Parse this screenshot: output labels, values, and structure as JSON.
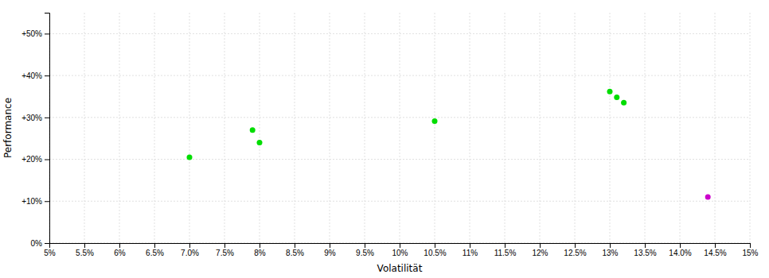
{
  "chart_data": {
    "type": "scatter",
    "xlabel": "Volatilität",
    "ylabel": "Performance",
    "xlim": [
      0.05,
      0.15
    ],
    "ylim": [
      0.0,
      0.55
    ],
    "xticks": [
      {
        "value": 0.05,
        "label": "5%"
      },
      {
        "value": 0.055,
        "label": "5.5%"
      },
      {
        "value": 0.06,
        "label": "6%"
      },
      {
        "value": 0.065,
        "label": "6.5%"
      },
      {
        "value": 0.07,
        "label": "7.0%"
      },
      {
        "value": 0.075,
        "label": "7.5%"
      },
      {
        "value": 0.08,
        "label": "8%"
      },
      {
        "value": 0.085,
        "label": "8.5%"
      },
      {
        "value": 0.09,
        "label": "9%"
      },
      {
        "value": 0.095,
        "label": "9.5%"
      },
      {
        "value": 0.1,
        "label": "10%"
      },
      {
        "value": 0.105,
        "label": "10.5%"
      },
      {
        "value": 0.11,
        "label": "11%"
      },
      {
        "value": 0.115,
        "label": "11.5%"
      },
      {
        "value": 0.12,
        "label": "12%"
      },
      {
        "value": 0.125,
        "label": "12.5%"
      },
      {
        "value": 0.13,
        "label": "13%"
      },
      {
        "value": 0.135,
        "label": "13.5%"
      },
      {
        "value": 0.14,
        "label": "14.0%"
      },
      {
        "value": 0.145,
        "label": "14.5%"
      },
      {
        "value": 0.15,
        "label": "15%"
      }
    ],
    "yticks": [
      {
        "value": 0.0,
        "label": "0%"
      },
      {
        "value": 0.1,
        "label": "+10%"
      },
      {
        "value": 0.2,
        "label": "+20%"
      },
      {
        "value": 0.3,
        "label": "+30%"
      },
      {
        "value": 0.4,
        "label": "+40%"
      },
      {
        "value": 0.5,
        "label": "+50%"
      }
    ],
    "grid": true,
    "series": [
      {
        "color": "#00dd00",
        "x": [
          0.07,
          0.079,
          0.08,
          0.105,
          0.13,
          0.131,
          0.132
        ],
        "values": [
          0.205,
          0.27,
          0.24,
          0.291,
          0.362,
          0.348,
          0.335
        ]
      },
      {
        "color": "#cc00cc",
        "x": [
          0.144
        ],
        "values": [
          0.11
        ]
      }
    ]
  }
}
